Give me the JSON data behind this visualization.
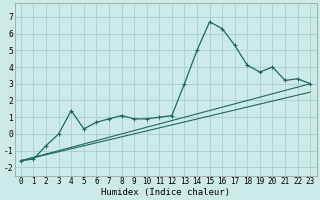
{
  "xlabel": "Humidex (Indice chaleur)",
  "background_color": "#cceae7",
  "grid_color": "#aad4cf",
  "line_color": "#1a6b5a",
  "xlim": [
    -0.5,
    23.5
  ],
  "ylim": [
    -2.5,
    7.8
  ],
  "xticks": [
    0,
    1,
    2,
    3,
    4,
    5,
    6,
    7,
    8,
    9,
    10,
    11,
    12,
    13,
    14,
    15,
    16,
    17,
    18,
    19,
    20,
    21,
    22,
    23
  ],
  "yticks": [
    -2,
    -1,
    0,
    1,
    2,
    3,
    4,
    5,
    6,
    7
  ],
  "curve1_x": [
    0,
    1,
    2,
    3,
    4,
    5,
    6,
    7,
    8,
    9,
    10,
    11,
    12,
    13,
    14,
    15,
    16,
    17,
    18,
    19,
    20,
    21,
    22,
    23
  ],
  "curve1_y": [
    -1.6,
    -1.5,
    -0.7,
    0.0,
    1.4,
    0.3,
    0.7,
    0.9,
    1.1,
    0.9,
    0.9,
    1.0,
    1.1,
    3.0,
    5.0,
    6.7,
    6.3,
    5.3,
    4.1,
    3.7,
    4.0,
    3.2,
    3.3,
    3.0
  ],
  "line2_x": [
    0,
    23
  ],
  "line2_y": [
    -1.6,
    3.0
  ],
  "line3_x": [
    0,
    23
  ],
  "line3_y": [
    -1.6,
    2.5
  ],
  "font_family": "monospace",
  "xlabel_fontsize": 6.5,
  "tick_fontsize": 5.5
}
